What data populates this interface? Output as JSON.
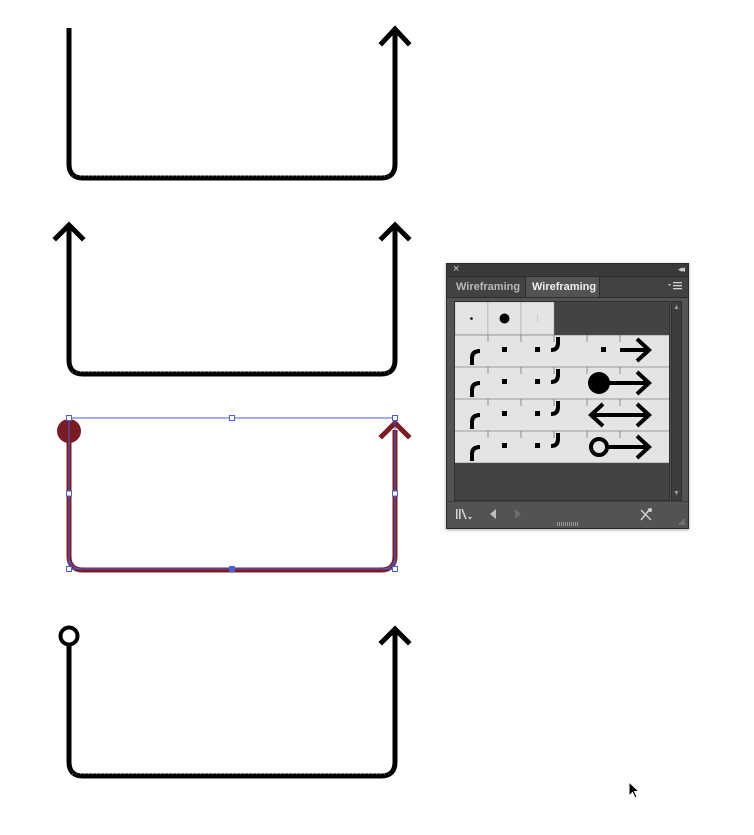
{
  "panel": {
    "tabs": [
      {
        "label": "Wireframing",
        "active": false
      },
      {
        "label": "Wireframing",
        "active": true
      }
    ],
    "icons": {
      "close": "×",
      "collapse": "◂◂",
      "scroll_up": "▲",
      "scroll_down": "▼"
    }
  },
  "colors": {
    "selection": "#4a5cd6",
    "selected_stroke": "#7b1c24",
    "stroke": "#000000",
    "panel_bg": "#535353"
  }
}
